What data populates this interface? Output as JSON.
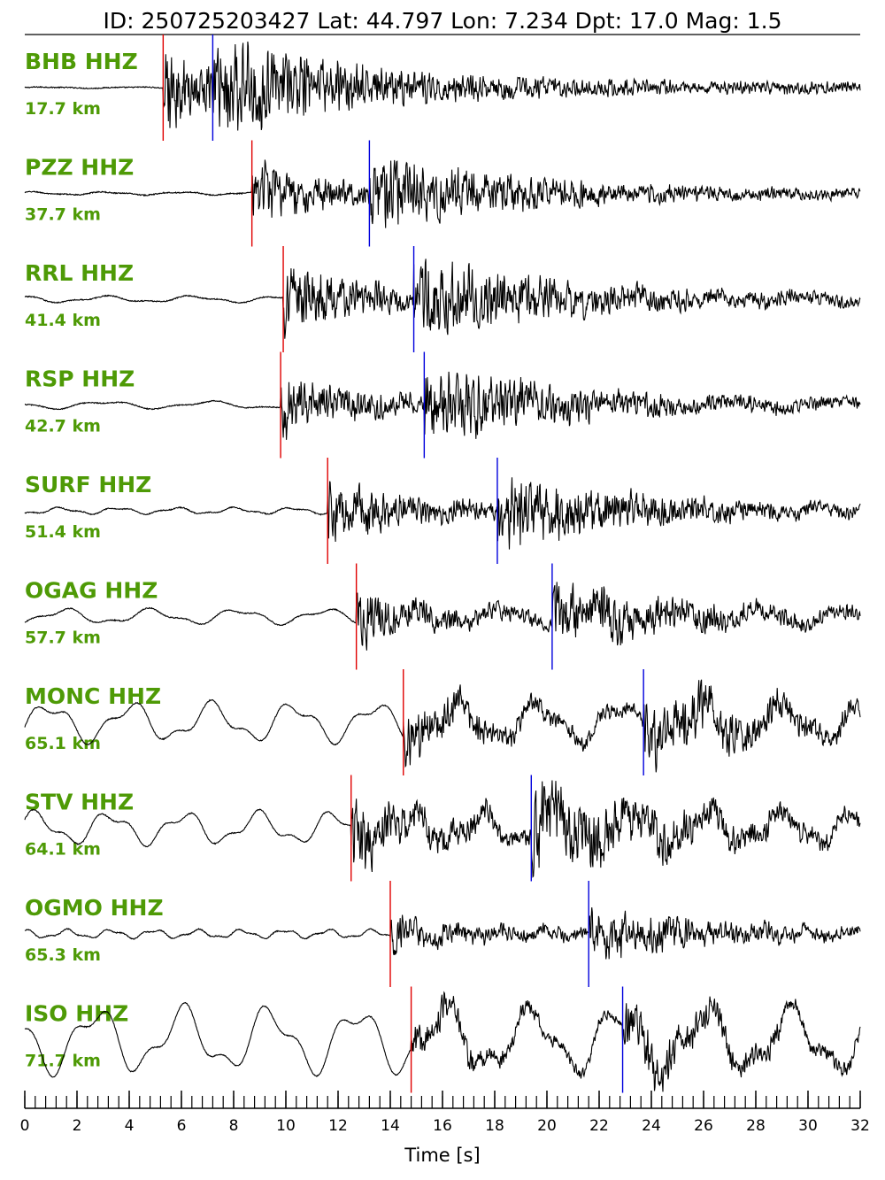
{
  "chart_data": {
    "type": "line",
    "title": "ID: 250725203427 Lat:  44.797 Lon:   7.234 Dpt:    17.0 Mag:   1.5",
    "xlabel": "Time [s]",
    "ylabel": "",
    "xlim": [
      0,
      32
    ],
    "x_ticks": [
      "0",
      "2",
      "4",
      "6",
      "8",
      "10",
      "12",
      "14",
      "16",
      "18",
      "20",
      "22",
      "24",
      "26",
      "28",
      "30",
      "32"
    ],
    "x_minor_step": 0.4,
    "grid": false,
    "trace_color": "#000000",
    "label_color": "#4e9a06",
    "p_pick_color": "#e00000",
    "s_pick_color": "#0000dd",
    "series": [
      {
        "name": "BHB HHZ",
        "distance": "17.7 km",
        "p_time": 5.3,
        "s_time": 7.2
      },
      {
        "name": "PZZ HHZ",
        "distance": "37.7 km",
        "p_time": 8.7,
        "s_time": 13.2
      },
      {
        "name": "RRL HHZ",
        "distance": "41.4 km",
        "p_time": 9.9,
        "s_time": 14.9
      },
      {
        "name": "RSP HHZ",
        "distance": "42.7 km",
        "p_time": 9.8,
        "s_time": 15.3
      },
      {
        "name": "SURF HHZ",
        "distance": "51.4 km",
        "p_time": 11.6,
        "s_time": 18.1
      },
      {
        "name": "OGAG HHZ",
        "distance": "57.7 km",
        "p_time": 12.7,
        "s_time": 20.2
      },
      {
        "name": "MONC HHZ",
        "distance": "65.1 km",
        "p_time": 14.5,
        "s_time": 23.7
      },
      {
        "name": "STV HHZ",
        "distance": "64.1 km",
        "p_time": 12.5,
        "s_time": 19.4
      },
      {
        "name": "OGMO HHZ",
        "distance": "65.3 km",
        "p_time": 14.0,
        "s_time": 21.6
      },
      {
        "name": "ISO HHZ",
        "distance": "71.7 km",
        "p_time": 14.8,
        "s_time": 22.9
      }
    ]
  }
}
